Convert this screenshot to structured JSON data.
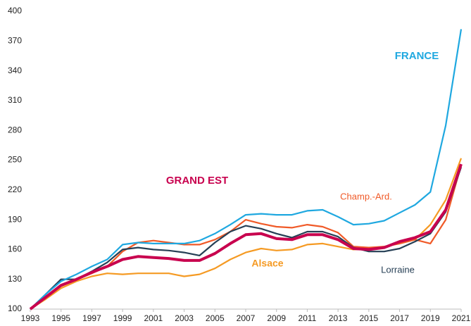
{
  "chart_data": {
    "type": "line",
    "x": [
      1993,
      1994,
      1995,
      1996,
      1997,
      1998,
      1999,
      2000,
      2001,
      2002,
      2003,
      2004,
      2005,
      2006,
      2007,
      2008,
      2009,
      2010,
      2011,
      2012,
      2013,
      2014,
      2015,
      2016,
      2017,
      2018,
      2019,
      2020,
      2021
    ],
    "series": [
      {
        "name": "Alsace",
        "color": "#f59a23",
        "values": [
          100,
          110,
          121,
          128,
          133,
          136,
          135,
          136,
          136,
          136,
          133,
          135,
          141,
          150,
          157,
          161,
          159,
          160,
          165,
          166,
          163,
          160,
          161,
          163,
          166,
          170,
          185,
          210,
          252
        ]
      },
      {
        "name": "Champ.-Ard.",
        "color": "#f05a28",
        "values": [
          100,
          111,
          123,
          130,
          136,
          143,
          158,
          167,
          169,
          167,
          165,
          165,
          170,
          178,
          190,
          186,
          183,
          182,
          185,
          183,
          177,
          163,
          162,
          163,
          166,
          170,
          166,
          190,
          245
        ]
      },
      {
        "name": "Lorraine",
        "color": "#263f55",
        "values": [
          100,
          115,
          130,
          130,
          138,
          147,
          160,
          162,
          160,
          159,
          157,
          154,
          167,
          178,
          184,
          181,
          176,
          172,
          178,
          178,
          173,
          162,
          158,
          158,
          161,
          168,
          176,
          198,
          243
        ]
      },
      {
        "name": "FRANCE",
        "color": "#1fa8e0",
        "values": [
          100,
          115,
          128,
          135,
          143,
          150,
          165,
          167,
          166,
          166,
          166,
          169,
          176,
          185,
          195,
          196,
          195,
          195,
          199,
          200,
          193,
          185,
          186,
          189,
          197,
          205,
          218,
          285,
          382
        ]
      },
      {
        "name": "GRAND EST",
        "color": "#c8004e",
        "values": [
          100,
          112,
          124,
          130,
          137,
          143,
          150,
          153,
          152,
          151,
          149,
          149,
          156,
          166,
          175,
          176,
          171,
          170,
          175,
          175,
          170,
          161,
          160,
          162,
          168,
          172,
          178,
          200,
          246
        ]
      }
    ],
    "xlim": [
      1993,
      2021
    ],
    "xticks": [
      1993,
      1995,
      1997,
      1999,
      2001,
      2003,
      2005,
      2007,
      2009,
      2011,
      2013,
      2015,
      2017,
      2019,
      2021
    ],
    "ylim": [
      100,
      400
    ],
    "yticks": [
      100,
      130,
      160,
      190,
      220,
      250,
      280,
      310,
      340,
      370,
      400
    ]
  }
}
